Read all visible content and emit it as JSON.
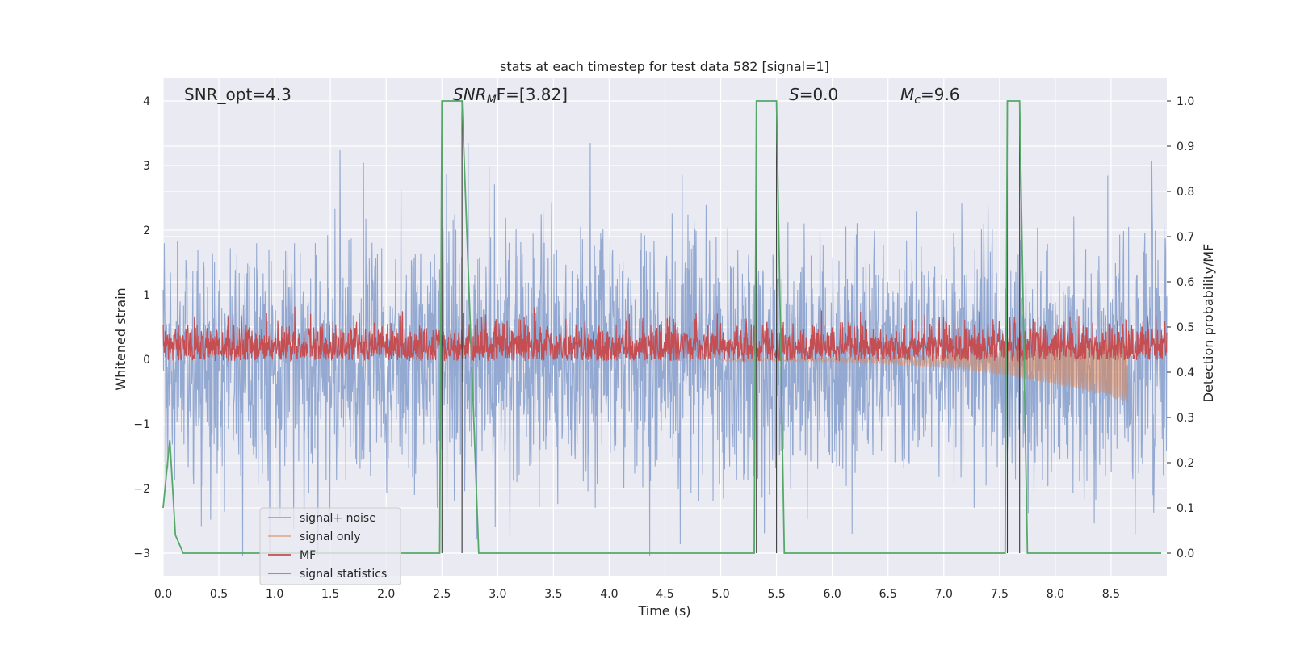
{
  "chart_data": {
    "type": "line",
    "title": "stats at each timestep for test data 582 [signal=1]",
    "xlabel": "Time (s)",
    "ylabel_left": "Whitened strain",
    "ylabel_right": "Detection probability/MF",
    "xlim": [
      0,
      9.0
    ],
    "ylim_left": [
      -3.35,
      4.35
    ],
    "ylim_right": [
      -0.05,
      1.05
    ],
    "x_ticks": [
      "0.0",
      "0.5",
      "1.0",
      "1.5",
      "2.0",
      "2.5",
      "3.0",
      "3.5",
      "4.0",
      "4.5",
      "5.0",
      "5.5",
      "6.0",
      "6.5",
      "7.0",
      "7.5",
      "8.0",
      "8.5"
    ],
    "y_ticks_left": [
      "−3",
      "−2",
      "−1",
      "0",
      "1",
      "2",
      "3",
      "4"
    ],
    "y_ticks_right": [
      "0.0",
      "0.1",
      "0.2",
      "0.3",
      "0.4",
      "0.5",
      "0.6",
      "0.7",
      "0.8",
      "0.9",
      "1.0"
    ],
    "grid": true,
    "legend_placement": "lower-left",
    "annotations": {
      "snr_opt": "SNR_opt=4.3",
      "snr_mf_sym": "SNR",
      "snr_mf_sub": "M",
      "snr_mf_rest": "F=[3.82]",
      "s_sym": "S",
      "s_rest": "=0.0",
      "mc_sym": "M",
      "mc_sub": "c",
      "mc_rest": "=9.6"
    },
    "series": [
      {
        "name": "signal+ noise",
        "color": "#8fa5cf",
        "noise_range": [
          -3.05,
          3.35
        ],
        "duration": 9.0
      },
      {
        "name": "signal only",
        "color": "#dd8452",
        "end_time": 8.65,
        "min_value": -0.6
      },
      {
        "name": "MF",
        "color": "#c44e52",
        "band_right_axis": [
          0.43,
          0.53
        ]
      },
      {
        "name": "signal statistics",
        "color": "#55a868",
        "x": [
          0.0,
          0.06,
          0.11,
          0.18,
          0.5,
          2.48,
          2.5,
          2.55,
          2.68,
          2.83,
          3.0,
          5.3,
          5.32,
          5.38,
          5.5,
          5.57,
          6.0,
          7.55,
          7.57,
          7.62,
          7.68,
          7.75,
          8.0,
          8.95
        ],
        "y": [
          0.1,
          0.25,
          0.04,
          0.0,
          0.0,
          0.0,
          1.0,
          1.0,
          1.0,
          0.0,
          0.0,
          0.0,
          1.0,
          1.0,
          1.0,
          0.0,
          0.0,
          0.0,
          1.0,
          1.0,
          1.0,
          0.0,
          0.0,
          0.0
        ]
      }
    ],
    "vertical_markers": [
      2.5,
      2.68,
      5.32,
      5.5,
      7.57,
      7.68
    ]
  },
  "legend": {
    "items": [
      "signal+ noise",
      "signal only",
      "MF",
      "signal statistics"
    ]
  }
}
